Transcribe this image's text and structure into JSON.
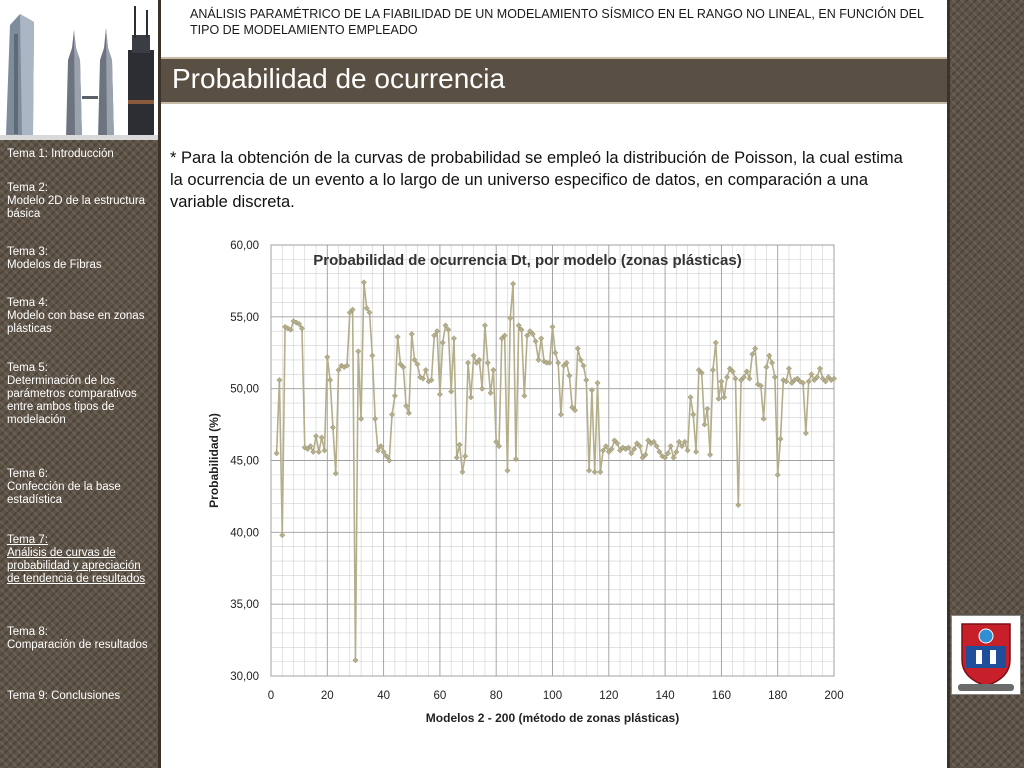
{
  "header": {
    "topic": "ANÁLISIS PARAMÉTRICO DE LA FIABILIDAD DE UN MODELAMIENTO SÍSMICO EN EL RANGO NO LINEAL, EN FUNCIÓN DEL TIPO DE MODELAMIENTO EMPLEADO",
    "title": "Probabilidad de ocurrencia"
  },
  "nav": [
    {
      "label": "Tema 1: Introducción"
    },
    {
      "label": "Tema 2:\nModelo 2D de la estructura básica"
    },
    {
      "label": "Tema 3:\nModelos de Fibras"
    },
    {
      "label": "Tema 4:\nModelo con base en zonas plásticas"
    },
    {
      "label": "Tema 5:\nDeterminación de los parámetros comparativos entre ambos tipos de modelación"
    },
    {
      "label": "Tema 6:\nConfección de la base estadística"
    },
    {
      "label": "Tema 7:\nAnálisis de curvas de probabilidad y apreciación de tendencia de resultados",
      "active": true
    },
    {
      "label": "Tema 8:\nComparación de resultados"
    },
    {
      "label": "Tema 9: Conclusiones"
    }
  ],
  "body_text": "* Para la obtención de la curvas de probabilidad se empleó la distribución de Poisson, la cual estima la ocurrencia de un evento a lo largo de un universo especifico de datos, en comparación a una variable discreta.",
  "colors": {
    "series": "#b4ae8a",
    "title_bar": "#5a4f43",
    "side_panel": "#5e5346"
  },
  "chart_data": {
    "type": "line",
    "title": "Probabilidad de ocurrencia Dt, por modelo (zonas plásticas)",
    "xlabel": "Modelos 2 - 200 (método de zonas plásticas)",
    "ylabel": "Probabilidad (%)",
    "xlim": [
      0,
      200
    ],
    "ylim": [
      30,
      60
    ],
    "xticks": [
      0,
      20,
      40,
      60,
      80,
      100,
      120,
      140,
      160,
      180,
      200
    ],
    "yticks": [
      "30,00",
      "35,00",
      "40,00",
      "45,00",
      "50,00",
      "55,00",
      "60,00"
    ],
    "grid": true,
    "legend": "none",
    "series": [
      {
        "x_start": 2,
        "x_step": 1,
        "values": [
          45.5,
          50.6,
          39.8,
          54.3,
          54.2,
          54.1,
          54.7,
          54.6,
          54.5,
          54.2,
          45.9,
          45.8,
          46.0,
          45.6,
          46.7,
          45.6,
          46.6,
          45.7,
          52.2,
          50.6,
          47.3,
          44.1,
          51.3,
          51.6,
          51.5,
          51.6,
          55.3,
          55.5,
          31.1,
          52.6,
          47.9,
          57.4,
          55.6,
          55.3,
          52.3,
          47.9,
          45.7,
          46.0,
          45.6,
          45.3,
          45.0,
          48.2,
          49.5,
          53.6,
          51.7,
          51.5,
          48.8,
          48.3,
          53.8,
          52.0,
          51.7,
          50.8,
          50.7,
          51.3,
          50.5,
          50.6,
          53.7,
          54.0,
          49.6,
          53.2,
          54.4,
          54.1,
          49.8,
          53.5,
          45.2,
          46.1,
          44.2,
          45.3,
          51.8,
          49.4,
          52.3,
          51.8,
          52.0,
          50.0,
          54.4,
          51.8,
          49.7,
          51.3,
          46.3,
          46.0,
          53.5,
          53.7,
          44.3,
          54.9,
          57.3,
          45.1,
          54.4,
          54.1,
          49.5,
          53.7,
          54.0,
          53.8,
          53.3,
          52.0,
          53.5,
          51.9,
          51.8,
          51.8,
          54.3,
          52.5,
          51.8,
          48.2,
          51.6,
          51.8,
          50.9,
          48.7,
          48.5,
          52.8,
          52.0,
          51.6,
          50.6,
          44.3,
          49.9,
          44.2,
          50.4,
          44.2,
          45.7,
          46.0,
          45.6,
          45.8,
          46.4,
          46.2,
          45.7,
          45.9,
          45.8,
          45.9,
          45.5,
          45.8,
          46.2,
          46.0,
          45.2,
          45.4,
          46.4,
          46.2,
          46.3,
          46.0,
          45.6,
          45.3,
          45.2,
          45.5,
          46.0,
          45.2,
          45.6,
          46.3,
          46.0,
          46.3,
          45.7,
          49.4,
          48.2,
          45.6,
          51.3,
          51.1,
          47.5,
          48.6,
          45.4,
          51.3,
          53.2,
          49.3,
          50.5,
          49.4,
          50.8,
          51.4,
          51.2,
          50.7,
          41.9,
          50.6,
          50.8,
          51.2,
          50.7,
          52.4,
          52.8,
          50.3,
          50.2,
          47.9,
          51.5,
          52.3,
          51.8,
          50.8,
          44.0,
          46.5,
          50.6,
          50.5,
          51.4,
          50.4,
          50.6,
          50.7,
          50.5,
          50.4,
          46.9,
          50.5,
          51.0,
          50.6,
          50.8,
          51.4,
          50.7,
          50.5,
          50.8,
          50.6,
          50.7
        ]
      }
    ]
  }
}
